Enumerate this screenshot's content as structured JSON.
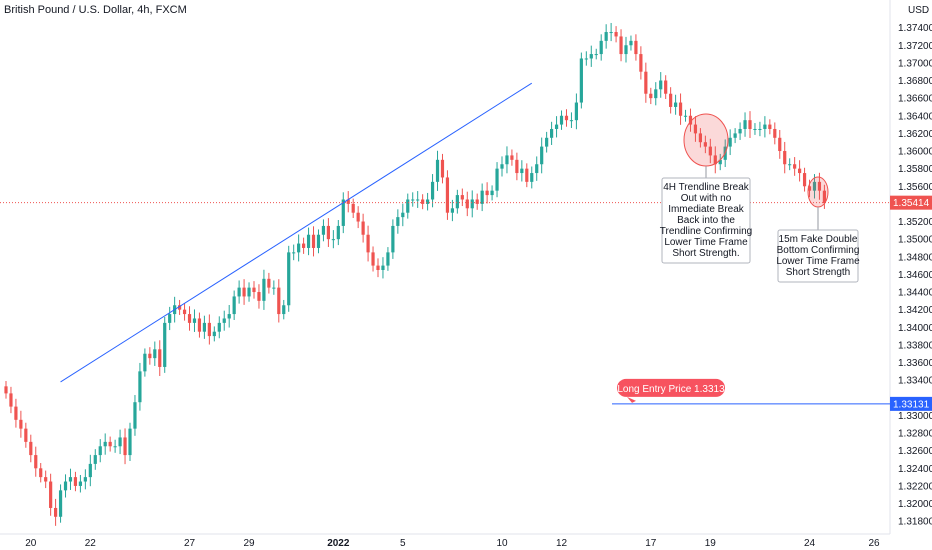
{
  "header": {
    "title": "British Pound / U.S. Dollar, 4h, FXCM",
    "currency": "USD"
  },
  "colors": {
    "up": "#26a69a",
    "down": "#ef5350",
    "trendline": "#2962ff",
    "entry_label": "#f7525f",
    "entry_badge": "#2962ff",
    "current_badge": "#ef5350"
  },
  "chart_data": {
    "type": "candlestick",
    "y_range": [
      1.317,
      1.376
    ],
    "y_ticks": [
      "1.37400",
      "1.37200",
      "1.37000",
      "1.36800",
      "1.36600",
      "1.36400",
      "1.36200",
      "1.36000",
      "1.35800",
      "1.35600",
      "1.35200",
      "1.35000",
      "1.34800",
      "1.34600",
      "1.34400",
      "1.34200",
      "1.34000",
      "1.33800",
      "1.33600",
      "1.33400",
      "1.33000",
      "1.32800",
      "1.32600",
      "1.32400",
      "1.32200",
      "1.32000",
      "1.31800"
    ],
    "x_ticks": [
      "20",
      "22",
      "27",
      "29",
      "2022",
      "5",
      "10",
      "12",
      "17",
      "19",
      "24",
      "26"
    ],
    "closes": [
      1.3325,
      1.331,
      1.3295,
      1.3285,
      1.327,
      1.3255,
      1.324,
      1.323,
      1.3225,
      1.3195,
      1.3185,
      1.3215,
      1.3225,
      1.323,
      1.322,
      1.3225,
      1.323,
      1.3245,
      1.3255,
      1.3265,
      1.327,
      1.3265,
      1.3265,
      1.3275,
      1.3255,
      1.3285,
      1.3315,
      1.335,
      1.337,
      1.3365,
      1.3375,
      1.3355,
      1.3405,
      1.3415,
      1.3425,
      1.342,
      1.3415,
      1.3405,
      1.341,
      1.3395,
      1.3405,
      1.339,
      1.3395,
      1.3405,
      1.341,
      1.3415,
      1.3435,
      1.3445,
      1.3435,
      1.3445,
      1.344,
      1.343,
      1.3455,
      1.3445,
      1.3445,
      1.3415,
      1.3425,
      1.3485,
      1.3485,
      1.3495,
      1.349,
      1.3505,
      1.349,
      1.3505,
      1.3515,
      1.35,
      1.35,
      1.3515,
      1.3545,
      1.354,
      1.353,
      1.352,
      1.3505,
      1.3485,
      1.347,
      1.3465,
      1.347,
      1.3485,
      1.3515,
      1.3525,
      1.353,
      1.3545,
      1.3545,
      1.3545,
      1.354,
      1.3545,
      1.3565,
      1.359,
      1.357,
      1.353,
      1.3535,
      1.355,
      1.3545,
      1.3535,
      1.3545,
      1.354,
      1.3555,
      1.355,
      1.3555,
      1.358,
      1.3585,
      1.3595,
      1.359,
      1.3575,
      1.358,
      1.3565,
      1.3575,
      1.3585,
      1.3605,
      1.3615,
      1.3625,
      1.363,
      1.364,
      1.3635,
      1.3635,
      1.3655,
      1.3705,
      1.3705,
      1.371,
      1.371,
      1.3725,
      1.3735,
      1.3735,
      1.373,
      1.371,
      1.372,
      1.3725,
      1.371,
      1.369,
      1.3665,
      1.366,
      1.367,
      1.368,
      1.3665,
      1.365,
      1.3655,
      1.364,
      1.364,
      1.363,
      1.362,
      1.361,
      1.3605,
      1.3595,
      1.3585,
      1.359,
      1.3605,
      1.3615,
      1.362,
      1.3625,
      1.3635,
      1.3625,
      1.3625,
      1.3625,
      1.363,
      1.3625,
      1.3615,
      1.36,
      1.3585,
      1.3585,
      1.358,
      1.3575,
      1.356,
      1.3555,
      1.3565,
      1.3555,
      1.3541
    ],
    "last_price": "1.35414",
    "trendline": {
      "from": {
        "index": 11,
        "price": 1.3338
      },
      "to": {
        "index": 106,
        "price": 1.3677
      }
    },
    "entry_level": "1.33131"
  },
  "annotations": {
    "trendline_note": [
      "4H Trendline Break",
      "Out with no",
      "Immediate Break",
      "Back into the",
      "Trendline Confirming",
      "Lower Time Frame",
      "Short Strength."
    ],
    "double_bottom_note": [
      "15m Fake Double",
      "Bottom Confirming",
      "Lower Time Frame",
      "Short Strength"
    ],
    "entry_label": "Long Entry Price 1.3313"
  }
}
